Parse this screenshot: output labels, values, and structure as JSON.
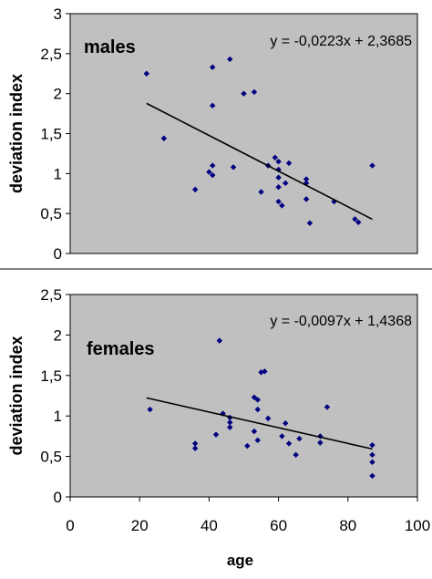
{
  "chart_data": [
    {
      "type": "scatter",
      "title": "males",
      "ylabel": "deviation index",
      "xlabel": "",
      "equation": "y = -0,0223x + 2,3685",
      "xlim": [
        0,
        100
      ],
      "ylim": [
        0,
        3
      ],
      "yticks": [
        "0",
        "0,5",
        "1",
        "1,5",
        "2",
        "2,5",
        "3"
      ],
      "xticks": [],
      "marker_color": "#000080",
      "plot_background": "#c0c0c0",
      "grid": false,
      "trendline": {
        "slope": -0.0223,
        "intercept": 2.3685,
        "x_range": [
          22,
          87
        ]
      },
      "points": [
        {
          "x": 22,
          "y": 2.25
        },
        {
          "x": 27,
          "y": 1.44
        },
        {
          "x": 36,
          "y": 0.8
        },
        {
          "x": 40,
          "y": 1.02
        },
        {
          "x": 41,
          "y": 2.33
        },
        {
          "x": 41,
          "y": 1.85
        },
        {
          "x": 41,
          "y": 1.1
        },
        {
          "x": 41,
          "y": 0.98
        },
        {
          "x": 46,
          "y": 2.43
        },
        {
          "x": 47,
          "y": 1.08
        },
        {
          "x": 50,
          "y": 2.0
        },
        {
          "x": 53,
          "y": 2.02
        },
        {
          "x": 55,
          "y": 0.77
        },
        {
          "x": 57,
          "y": 1.1
        },
        {
          "x": 59,
          "y": 1.2
        },
        {
          "x": 60,
          "y": 1.15
        },
        {
          "x": 60,
          "y": 1.05
        },
        {
          "x": 60,
          "y": 0.95
        },
        {
          "x": 60,
          "y": 0.83
        },
        {
          "x": 60,
          "y": 0.65
        },
        {
          "x": 61,
          "y": 0.6
        },
        {
          "x": 62,
          "y": 0.88
        },
        {
          "x": 63,
          "y": 1.13
        },
        {
          "x": 68,
          "y": 0.93
        },
        {
          "x": 68,
          "y": 0.88
        },
        {
          "x": 68,
          "y": 0.68
        },
        {
          "x": 69,
          "y": 0.38
        },
        {
          "x": 76,
          "y": 0.65
        },
        {
          "x": 82,
          "y": 0.43
        },
        {
          "x": 83,
          "y": 0.39
        },
        {
          "x": 87,
          "y": 1.1
        }
      ]
    },
    {
      "type": "scatter",
      "title": "females",
      "ylabel": "deviation index",
      "xlabel": "age",
      "equation": "y = -0,0097x + 1,4368",
      "xlim": [
        0,
        100
      ],
      "ylim": [
        0,
        2.5
      ],
      "yticks": [
        "0",
        "0,5",
        "1",
        "1,5",
        "2",
        "2,5"
      ],
      "xticks": [
        "0",
        "20",
        "40",
        "60",
        "80",
        "100"
      ],
      "marker_color": "#000080",
      "plot_background": "#c0c0c0",
      "grid": false,
      "trendline": {
        "slope": -0.0097,
        "intercept": 1.4368,
        "x_range": [
          22,
          87
        ]
      },
      "points": [
        {
          "x": 23,
          "y": 1.08
        },
        {
          "x": 36,
          "y": 0.66
        },
        {
          "x": 36,
          "y": 0.6
        },
        {
          "x": 42,
          "y": 0.77
        },
        {
          "x": 43,
          "y": 1.93
        },
        {
          "x": 44,
          "y": 1.03
        },
        {
          "x": 46,
          "y": 0.98
        },
        {
          "x": 46,
          "y": 0.92
        },
        {
          "x": 46,
          "y": 0.86
        },
        {
          "x": 51,
          "y": 0.63
        },
        {
          "x": 53,
          "y": 1.23
        },
        {
          "x": 54,
          "y": 1.2
        },
        {
          "x": 54,
          "y": 1.08
        },
        {
          "x": 53,
          "y": 0.81
        },
        {
          "x": 54,
          "y": 0.7
        },
        {
          "x": 55,
          "y": 1.54
        },
        {
          "x": 56,
          "y": 1.55
        },
        {
          "x": 57,
          "y": 0.97
        },
        {
          "x": 61,
          "y": 0.75
        },
        {
          "x": 62,
          "y": 0.91
        },
        {
          "x": 63,
          "y": 0.66
        },
        {
          "x": 65,
          "y": 0.52
        },
        {
          "x": 66,
          "y": 0.72
        },
        {
          "x": 72,
          "y": 0.75
        },
        {
          "x": 72,
          "y": 0.67
        },
        {
          "x": 74,
          "y": 1.11
        },
        {
          "x": 87,
          "y": 0.64
        },
        {
          "x": 87,
          "y": 0.52
        },
        {
          "x": 87,
          "y": 0.43
        },
        {
          "x": 87,
          "y": 0.26
        }
      ]
    }
  ]
}
